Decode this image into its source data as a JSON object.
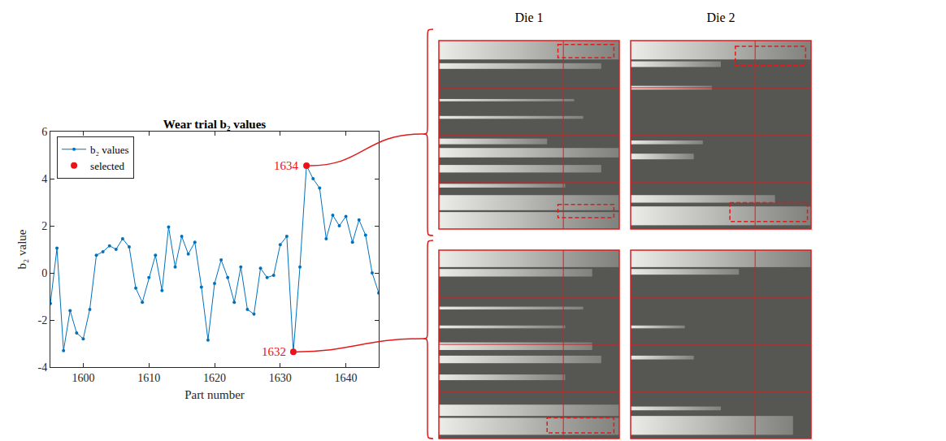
{
  "chart_data": {
    "type": "line",
    "title": "Wear trial b₂ values",
    "x_label": "Part number",
    "y_label": "b₂ value",
    "xlim": [
      1595,
      1645
    ],
    "xticks": [
      1600,
      1610,
      1620,
      1630,
      1640
    ],
    "ylim": [
      -4,
      6
    ],
    "yticks": [
      -4,
      -2,
      0,
      2,
      4,
      6
    ],
    "grid": false,
    "legend": "upper left",
    "series": [
      {
        "name": "b₂ values",
        "color": "#0072BD",
        "marker": "dot",
        "line_style": "solid",
        "x": [
          1595,
          1596,
          1597,
          1598,
          1599,
          1600,
          1601,
          1602,
          1603,
          1604,
          1605,
          1606,
          1607,
          1608,
          1609,
          1610,
          1611,
          1612,
          1613,
          1614,
          1615,
          1616,
          1617,
          1618,
          1619,
          1620,
          1621,
          1622,
          1623,
          1624,
          1625,
          1626,
          1627,
          1628,
          1629,
          1630,
          1631,
          1632,
          1633,
          1634,
          1635,
          1636,
          1637,
          1638,
          1639,
          1640,
          1641,
          1642,
          1643,
          1644,
          1645
        ],
        "values": [
          -1.3,
          1.05,
          -3.3,
          -1.6,
          -2.55,
          -2.8,
          -1.55,
          0.75,
          0.9,
          1.15,
          1.0,
          1.45,
          1.1,
          -0.65,
          -1.25,
          -0.2,
          0.75,
          -0.75,
          1.95,
          0.25,
          1.55,
          0.8,
          1.3,
          -0.6,
          -2.85,
          -0.45,
          0.55,
          -0.2,
          -1.25,
          0.25,
          -1.55,
          -1.75,
          0.2,
          -0.2,
          -0.1,
          1.2,
          1.55,
          -3.35,
          0.25,
          4.55,
          4.0,
          3.6,
          1.45,
          2.45,
          2.0,
          2.4,
          1.3,
          2.25,
          1.6,
          0.0,
          -0.85
        ]
      },
      {
        "name": "selected",
        "type": "scatter",
        "color": "#e8141a",
        "marker": "circle",
        "x": [
          1634,
          1632
        ],
        "values": [
          4.55,
          -3.35
        ]
      }
    ],
    "annotations": [
      {
        "text": "1634",
        "x": 1634,
        "y": 4.55
      },
      {
        "text": "1632",
        "x": 1632,
        "y": -3.35
      }
    ]
  },
  "photos": {
    "columns": [
      "Die 1",
      "Die 2"
    ],
    "rows": [
      1634,
      1632
    ]
  }
}
